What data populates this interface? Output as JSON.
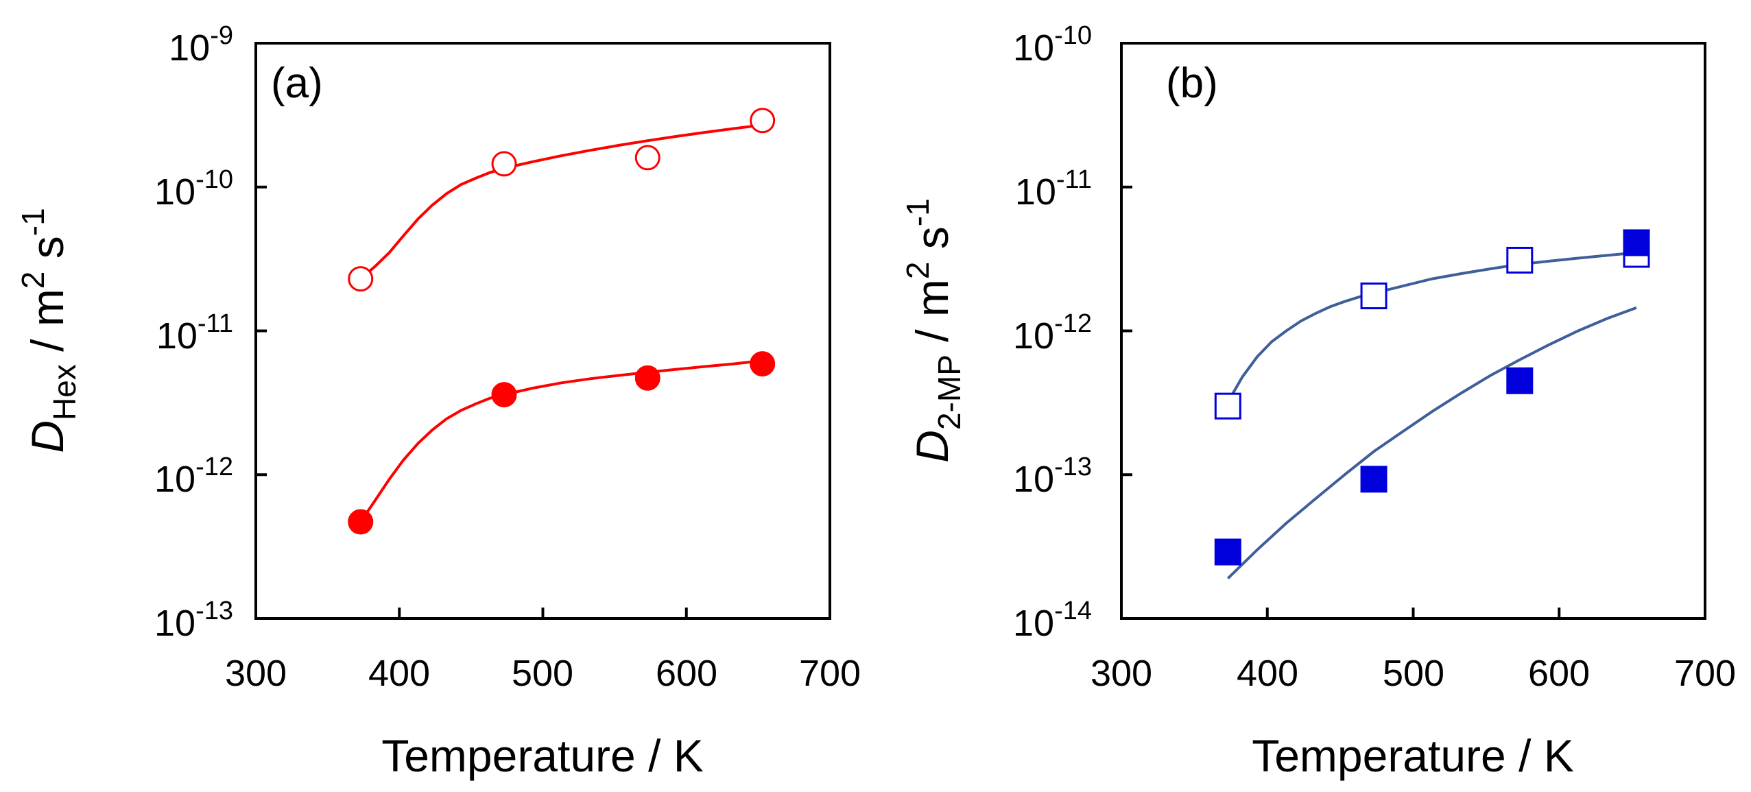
{
  "chart_data": [
    {
      "id": "a",
      "type": "scatter",
      "panel_label": "(a)",
      "title": "",
      "xlabel": "Temperature / K",
      "ylabel": {
        "symbol": "D",
        "subscript": "Hex",
        "unit_prefix": " / m",
        "exp1": "2",
        "unit_mid": " s",
        "exp2": "-1"
      },
      "xlim": [
        300,
        700
      ],
      "ylim_log10": [
        -13,
        -9
      ],
      "x_ticks": [
        "300",
        "400",
        "500",
        "600",
        "700"
      ],
      "y_ticks": [
        {
          "base": "10",
          "exp": "-13"
        },
        {
          "base": "10",
          "exp": "-12"
        },
        {
          "base": "10",
          "exp": "-11"
        },
        {
          "base": "10",
          "exp": "-10"
        },
        {
          "base": "10",
          "exp": "-9"
        }
      ],
      "color": "#ff0000",
      "series": [
        {
          "name": "open circles",
          "marker": "circle-open",
          "x": [
            373,
            473,
            573,
            653
          ],
          "y": [
            2.3e-11,
            1.45e-10,
            1.6e-10,
            2.9e-10
          ],
          "fit_x": [
            373,
            383,
            393,
            403,
            413,
            423,
            433,
            443,
            453,
            463,
            473,
            493,
            513,
            533,
            553,
            573,
            593,
            613,
            633,
            653
          ],
          "fit_y": [
            2.3e-11,
            2.8e-11,
            3.5e-11,
            4.6e-11,
            6e-11,
            7.5e-11,
            9e-11,
            1.04e-10,
            1.15e-10,
            1.26e-10,
            1.35e-10,
            1.5e-10,
            1.65e-10,
            1.8e-10,
            1.95e-10,
            2.1e-10,
            2.25e-10,
            2.4e-10,
            2.55e-10,
            2.7e-10
          ]
        },
        {
          "name": "filled circles",
          "marker": "circle-filled",
          "x": [
            373,
            473,
            573,
            653
          ],
          "y": [
            4.7e-13,
            3.6e-12,
            4.7e-12,
            5.9e-12
          ],
          "fit_x": [
            373,
            383,
            393,
            403,
            413,
            423,
            433,
            443,
            453,
            463,
            473,
            493,
            513,
            533,
            553,
            573,
            593,
            613,
            633,
            653
          ],
          "fit_y": [
            4.7e-13,
            6.6e-13,
            9.3e-13,
            1.27e-12,
            1.65e-12,
            2.05e-12,
            2.45e-12,
            2.8e-12,
            3.1e-12,
            3.4e-12,
            3.6e-12,
            4e-12,
            4.35e-12,
            4.65e-12,
            4.9e-12,
            5.15e-12,
            5.4e-12,
            5.65e-12,
            5.9e-12,
            6.2e-12
          ]
        }
      ]
    },
    {
      "id": "b",
      "type": "scatter",
      "panel_label": "(b)",
      "title": "",
      "xlabel": "Temperature / K",
      "ylabel": {
        "symbol": "D",
        "subscript": "2-MP",
        "unit_prefix": " / m",
        "exp1": "2",
        "unit_mid": " s",
        "exp2": "-1"
      },
      "xlim": [
        300,
        700
      ],
      "ylim_log10": [
        -14,
        -10
      ],
      "x_ticks": [
        "300",
        "400",
        "500",
        "600",
        "700"
      ],
      "y_ticks": [
        {
          "base": "10",
          "exp": "-14"
        },
        {
          "base": "10",
          "exp": "-13"
        },
        {
          "base": "10",
          "exp": "-12"
        },
        {
          "base": "10",
          "exp": "-11"
        },
        {
          "base": "10",
          "exp": "-10"
        }
      ],
      "marker_color": "#0000dd",
      "line_color": "#3f5f9a",
      "series": [
        {
          "name": "open squares",
          "marker": "square-open",
          "x": [
            373,
            473,
            573,
            653
          ],
          "y": [
            3e-13,
            1.75e-12,
            3.1e-12,
            3.4e-12
          ],
          "fit_x": [
            373,
            383,
            393,
            403,
            413,
            423,
            433,
            443,
            453,
            463,
            473,
            493,
            513,
            533,
            553,
            573,
            593,
            613,
            633,
            653
          ],
          "fit_y": [
            3.2e-13,
            4.8e-13,
            6.6e-13,
            8.4e-13,
            1e-12,
            1.17e-12,
            1.32e-12,
            1.47e-12,
            1.6e-12,
            1.72e-12,
            1.83e-12,
            2.05e-12,
            2.3e-12,
            2.5e-12,
            2.7e-12,
            2.9e-12,
            3.05e-12,
            3.2e-12,
            3.35e-12,
            3.5e-12
          ]
        },
        {
          "name": "filled squares",
          "marker": "square-filled",
          "x": [
            373,
            473,
            573,
            653
          ],
          "y": [
            2.9e-14,
            9.3e-14,
            4.5e-13,
            4.1e-12
          ],
          "fit_x": [
            373,
            393,
            413,
            433,
            453,
            473,
            493,
            513,
            533,
            553,
            573,
            593,
            613,
            633,
            653
          ],
          "fit_y": [
            1.9e-14,
            3e-14,
            4.6e-14,
            6.8e-14,
            1e-13,
            1.45e-13,
            2e-13,
            2.75e-13,
            3.7e-13,
            4.9e-13,
            6.3e-13,
            8e-13,
            1e-12,
            1.22e-12,
            1.45e-12
          ]
        }
      ]
    }
  ]
}
